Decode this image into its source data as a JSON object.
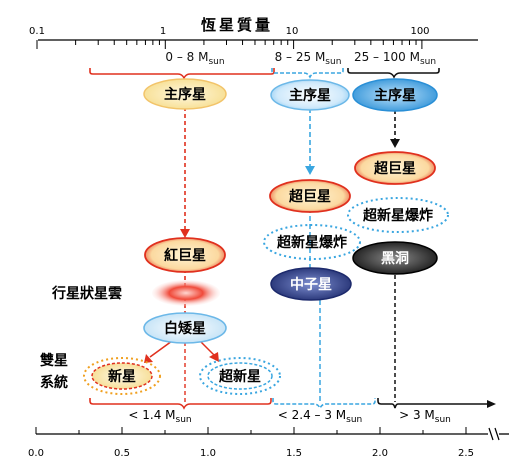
{
  "top_axis": {
    "title": "恆星質量",
    "ticks": [
      "0.1",
      "1",
      "10",
      "100"
    ]
  },
  "mass_ranges": {
    "low": "0 – 8 M",
    "mid": "8 – 25 M",
    "high": "25 – 100 M",
    "sub": "sun"
  },
  "colors": {
    "red_track": "#e0301e",
    "blue_track": "#3aa6e0",
    "black_track": "#111111",
    "main_seq_fill": "#fbeec0",
    "blue_fill": "#2a8fd6",
    "purple_fill": "#2e3f8c"
  },
  "nodes": {
    "main_seq_low": "主序星",
    "main_seq_mid": "主序星",
    "main_seq_high": "主序星",
    "red_giant": "紅巨星",
    "planetary_nebula": "行星狀星雲",
    "white_dwarf": "白矮星",
    "binary_system_line1": "雙星",
    "binary_system_line2": "系統",
    "nova": "新星",
    "supernova_low": "超新星",
    "supergiant_mid": "超巨星",
    "supernova_mid": "超新星爆炸",
    "neutron_star": "中子星",
    "supergiant_high": "超巨星",
    "supernova_high": "超新星爆炸",
    "black_hole": "黑洞"
  },
  "remnant_ranges": {
    "white_dwarf_limit": "< 1.4 M",
    "neutron_limit": "< 2.4 – 3 M",
    "black_hole_limit": "> 3 M",
    "sub": "sun"
  },
  "bottom_axis": {
    "ticks": [
      "0.0",
      "0.5",
      "1.0",
      "1.5",
      "2.0",
      "2.5"
    ]
  }
}
